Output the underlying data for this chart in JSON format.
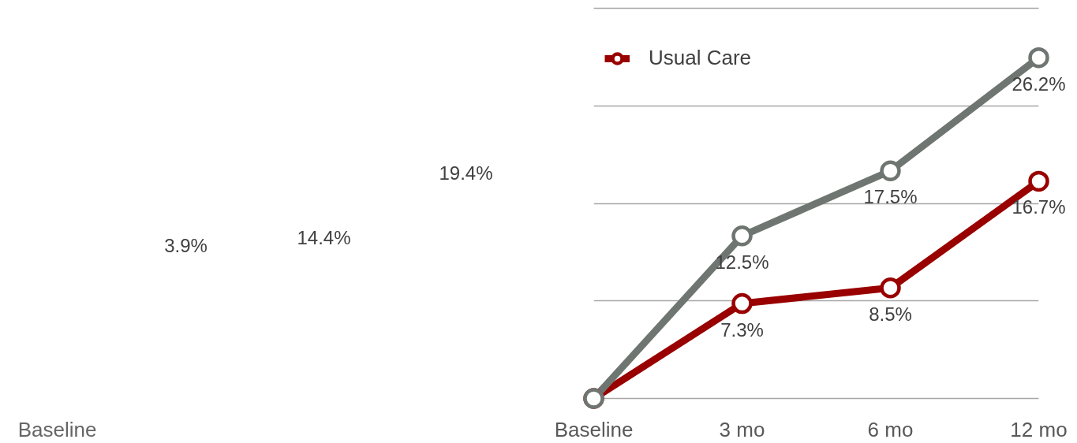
{
  "chart_data": [
    {
      "type": "other",
      "annotations": [
        "Baseline",
        "3.9%",
        "14.4%",
        "19.4%"
      ]
    },
    {
      "type": "line",
      "categories": [
        "Baseline",
        "3 mo",
        "6 mo",
        "12 mo"
      ],
      "ylim": [
        0,
        30
      ],
      "yticks": [
        {
          "value": 7.5,
          "label": null
        },
        {
          "value": 15,
          "label": null
        },
        {
          "value": 22.5,
          "label": null
        }
      ],
      "tick_labels": "x",
      "grid": "y",
      "legend": "top left",
      "marker": "circle",
      "series": [
        {
          "name": "Usual Care",
          "color": "#990000",
          "values": [
            0,
            7.3,
            8.5,
            16.7
          ],
          "value_labels": [
            null,
            "7.3%",
            "8.5%",
            "16.7%"
          ]
        },
        {
          "color": "#6f7672",
          "values": [
            0,
            12.5,
            17.5,
            26.2
          ],
          "value_labels": [
            null,
            "12.5%",
            "17.5%",
            "26.2%"
          ]
        }
      ]
    }
  ]
}
